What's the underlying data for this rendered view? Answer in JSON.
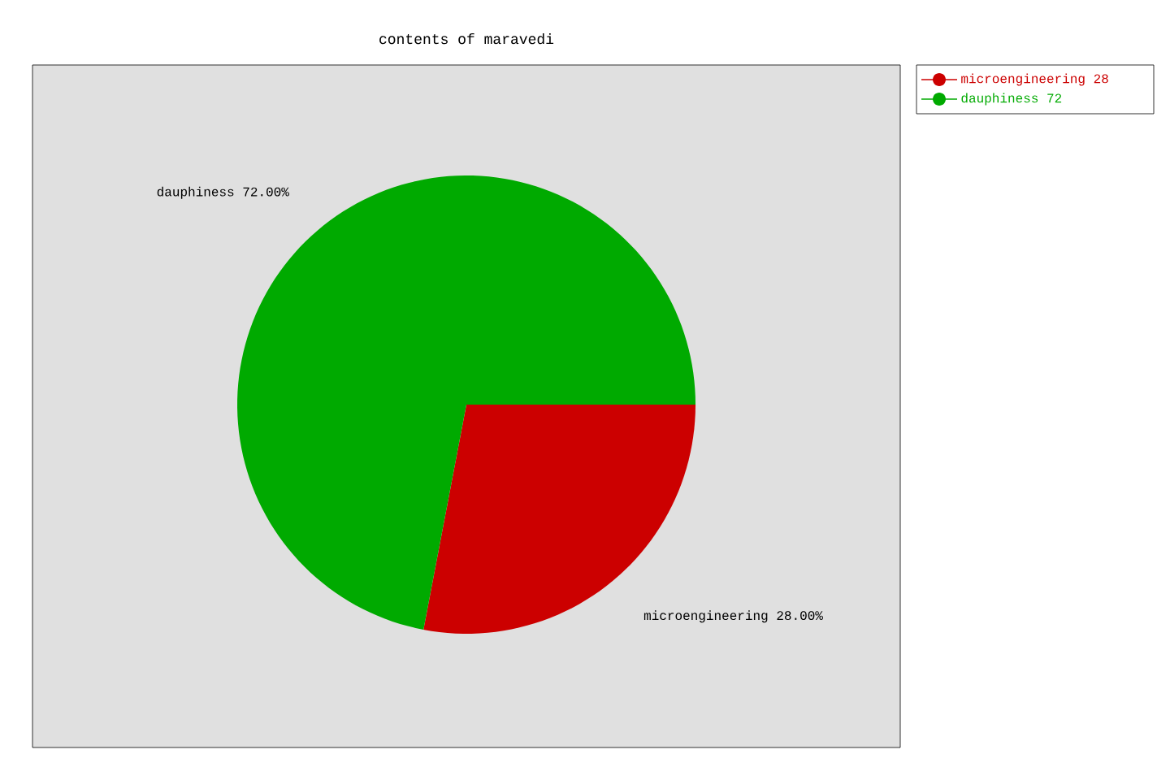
{
  "chart_data": {
    "type": "pie",
    "title": "contents of maravedi",
    "categories": [
      "microengineering",
      "dauphiness"
    ],
    "values": [
      28,
      72
    ],
    "colors": [
      "#cc0000",
      "#00aa00"
    ],
    "data_labels": true,
    "annotations": [
      "28.00%",
      "72.00%"
    ],
    "legend": "top right"
  }
}
